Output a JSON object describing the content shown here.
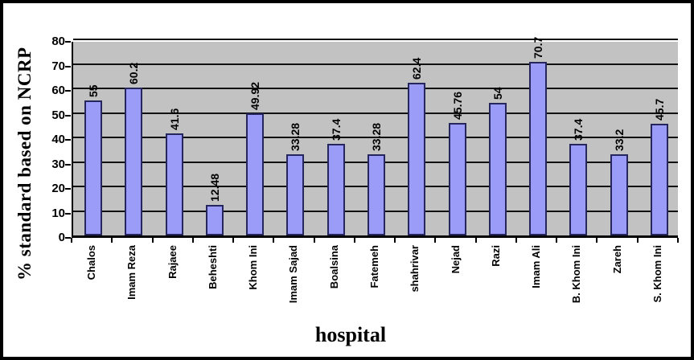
{
  "chart_data": {
    "type": "bar",
    "title": "",
    "xlabel": "hospital",
    "ylabel": "% standard based on NCRP",
    "ylim": [
      0,
      80
    ],
    "yticks": [
      0,
      10,
      20,
      30,
      40,
      50,
      60,
      70,
      80
    ],
    "grid": true,
    "legend_position": "none",
    "categories": [
      "Chalos",
      "Imam Reza",
      "Rajaee",
      "Beheshti",
      "Khom Ini",
      "Imam Sajad",
      "Boalsina",
      "Fatemeh",
      "shahrivar",
      "Nejad",
      "Razi",
      "Imam Ali",
      "B. Khom Ini",
      "Zareh",
      "S. Khom Ini"
    ],
    "values": [
      55,
      60.2,
      41.6,
      12.48,
      49.92,
      33.28,
      37.4,
      33.28,
      62.4,
      45.76,
      54,
      70.7,
      37.4,
      33.2,
      45.7
    ],
    "value_labels": [
      "55",
      "60.2",
      "41.6",
      "12.48",
      "49.92",
      "33.28",
      "37.4",
      "33.28",
      "62.4",
      "45.76",
      "54",
      "70.7",
      "37.4",
      "33.2",
      "45.7"
    ],
    "colors": {
      "bar_fill": "#9b9bf8",
      "bar_border": "#26265e",
      "plot_bg": "#c2c2c2",
      "gridline": "#111111",
      "axis": "#000000",
      "frame_border": "#000000",
      "background": "#ffffff"
    }
  }
}
